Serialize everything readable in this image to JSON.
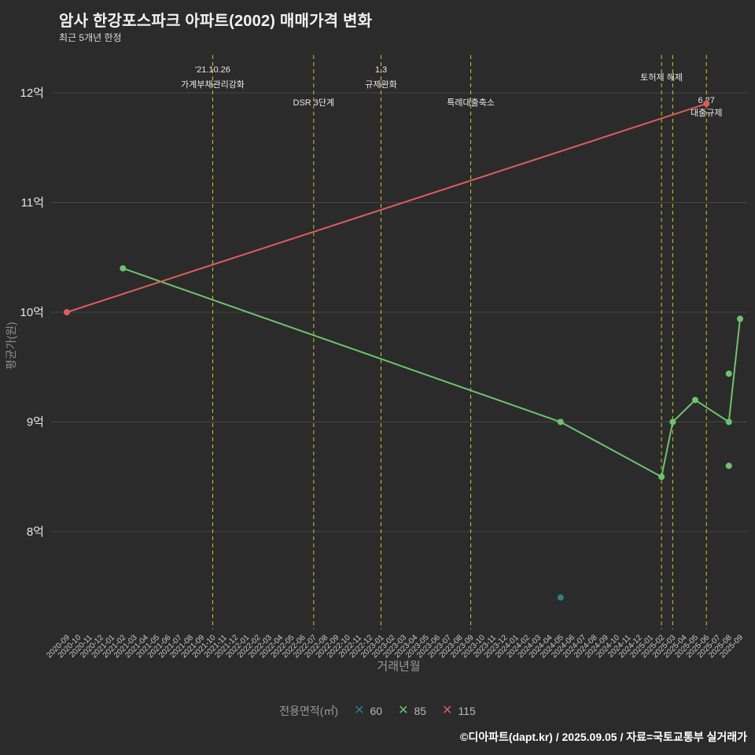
{
  "title": "암사 한강포스파크 아파트(2002) 매매가격 변화",
  "subtitle": "최근 5개년 한정",
  "footer": "©디아파트(dapt.kr) / 2025.09.05 / 자료=국토교통부 실거래가",
  "colors": {
    "background": "#2b2b2b",
    "grid": "#464646",
    "annotation_line": "#c9c91e",
    "tick_text": "#c9c9c9",
    "axis_text": "#e6e6e6",
    "annotation_text": "#e8e8e8"
  },
  "chart_data": {
    "type": "line",
    "title": "암사 한강포스파크 아파트(2002) 매매가격 변화",
    "xlabel": "거래년월",
    "ylabel": "평균가(원)",
    "ylim": [
      7.1,
      12.35
    ],
    "grid": true,
    "x_ticks": [
      "2020-09",
      "2020-10",
      "2020-11",
      "2020-12",
      "2021-01",
      "2021-02",
      "2021-03",
      "2021-04",
      "2021-05",
      "2021-06",
      "2021-07",
      "2021-08",
      "2021-09",
      "2021-10",
      "2021-11",
      "2021-12",
      "2022-01",
      "2022-02",
      "2022-03",
      "2022-04",
      "2022-05",
      "2022-06",
      "2022-07",
      "2022-08",
      "2022-09",
      "2022-10",
      "2022-11",
      "2022-12",
      "2023-01",
      "2023-02",
      "2023-03",
      "2023-04",
      "2023-05",
      "2023-06",
      "2023-07",
      "2023-08",
      "2023-09",
      "2023-10",
      "2023-11",
      "2023-12",
      "2024-01",
      "2024-02",
      "2024-03",
      "2024-04",
      "2024-05",
      "2024-06",
      "2024-07",
      "2024-08",
      "2024-09",
      "2024-10",
      "2024-11",
      "2024-12",
      "2025-01",
      "2025-02",
      "2025-03",
      "2025-04",
      "2025-05",
      "2025-06",
      "2025-07",
      "2025-08",
      "2025-09"
    ],
    "y_ticks": [
      {
        "value": 8,
        "label": "8억"
      },
      {
        "value": 9,
        "label": "9억"
      },
      {
        "value": 10,
        "label": "10억"
      },
      {
        "value": 11,
        "label": "11억"
      },
      {
        "value": 12,
        "label": "12억"
      }
    ],
    "series": [
      {
        "name": "60",
        "color": "#2e8080",
        "points": [
          [
            "2024-05",
            7.4
          ]
        ]
      },
      {
        "name": "85",
        "color": "#6dc36d",
        "points": [
          [
            "2021-02",
            10.4
          ],
          [
            "2024-05",
            9.0
          ],
          [
            "2025-02",
            8.5
          ],
          [
            "2025-03",
            9.0
          ],
          [
            "2025-05",
            9.2
          ],
          [
            "2025-08",
            9.0
          ],
          [
            "2025-09",
            9.94
          ]
        ],
        "scatter_points": [
          [
            "2025-08",
            9.44
          ],
          [
            "2025-08",
            8.6
          ]
        ]
      },
      {
        "name": "115",
        "color": "#e05c5c",
        "points": [
          [
            "2020-09",
            10.0
          ],
          [
            "2025-06",
            11.9
          ]
        ]
      }
    ],
    "annotations": [
      {
        "month": "2021-10",
        "labels": [
          {
            "text": "'21.10.26",
            "y": 92
          },
          {
            "text": "가계부채관리강화",
            "y": 111
          }
        ]
      },
      {
        "month": "2022-07",
        "labels": [
          {
            "text": "DSR 3단계",
            "y": 134
          }
        ]
      },
      {
        "month": "2023-01",
        "labels": [
          {
            "text": "1.3",
            "y": 92
          },
          {
            "text": "규제완화",
            "y": 111
          }
        ]
      },
      {
        "month": "2023-09",
        "labels": [
          {
            "text": "특례대출축소",
            "y": 134
          }
        ]
      },
      {
        "month": "2025-02",
        "labels": [
          {
            "text": "토허제 해제",
            "y": 102
          }
        ]
      },
      {
        "month": "2025-03",
        "labels": []
      },
      {
        "month": "2025-06",
        "labels": [
          {
            "text": "6.27",
            "y": 131
          },
          {
            "text": "대출규제",
            "y": 147
          }
        ]
      }
    ],
    "legend": {
      "title": "전용면적(㎡)",
      "items": [
        {
          "label": "60",
          "color": "#2e8080"
        },
        {
          "label": "85",
          "color": "#6dc36d"
        },
        {
          "label": "115",
          "color": "#e05c5c"
        }
      ]
    }
  }
}
